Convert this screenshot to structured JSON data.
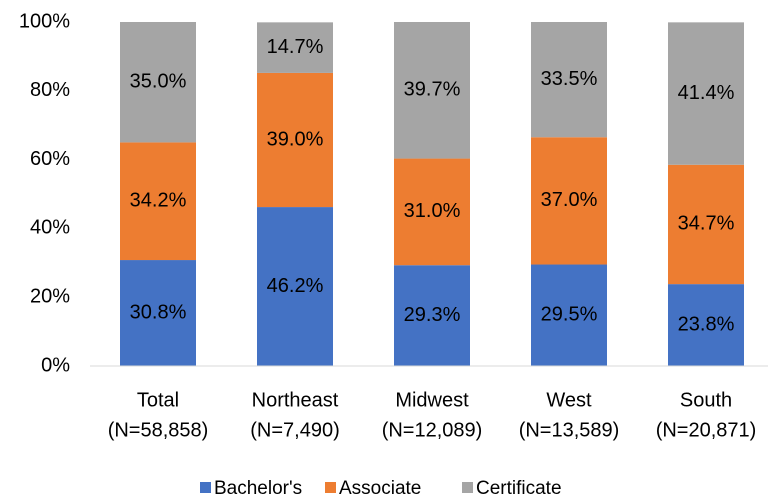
{
  "chart_data": {
    "type": "stacked_bar",
    "categories": [
      [
        "Total",
        "(N=58,858)"
      ],
      [
        "Northeast",
        "(N=7,490)"
      ],
      [
        "Midwest",
        "(N=12,089)"
      ],
      [
        "West",
        "(N=13,589)"
      ],
      [
        "South",
        "(N=20,871)"
      ]
    ],
    "series": [
      {
        "name": "Bachelor's",
        "color": "#4472c4",
        "values": [
          30.8,
          46.2,
          29.3,
          29.5,
          23.8
        ],
        "value_labels": [
          "30.8%",
          "46.2%",
          "29.3%",
          "29.5%",
          "23.8%"
        ]
      },
      {
        "name": "Associate",
        "color": "#ed7d31",
        "values": [
          34.2,
          39.0,
          31.0,
          37.0,
          34.7
        ],
        "value_labels": [
          "34.2%",
          "39.0%",
          "31.0%",
          "37.0%",
          "34.7%"
        ]
      },
      {
        "name": "Certificate",
        "color": "#a5a5a5",
        "values": [
          35.0,
          14.7,
          39.7,
          33.5,
          41.4
        ],
        "value_labels": [
          "35.0%",
          "14.7%",
          "39.7%",
          "33.5%",
          "41.4%"
        ]
      }
    ],
    "ylim": [
      0,
      100
    ],
    "yticks": [
      {
        "value": 0,
        "label": "0%"
      },
      {
        "value": 20,
        "label": "20%"
      },
      {
        "value": 40,
        "label": "40%"
      },
      {
        "value": 60,
        "label": "60%"
      },
      {
        "value": 80,
        "label": "80%"
      },
      {
        "value": 100,
        "label": "100%"
      }
    ],
    "grid": false,
    "legend": "bottom"
  }
}
